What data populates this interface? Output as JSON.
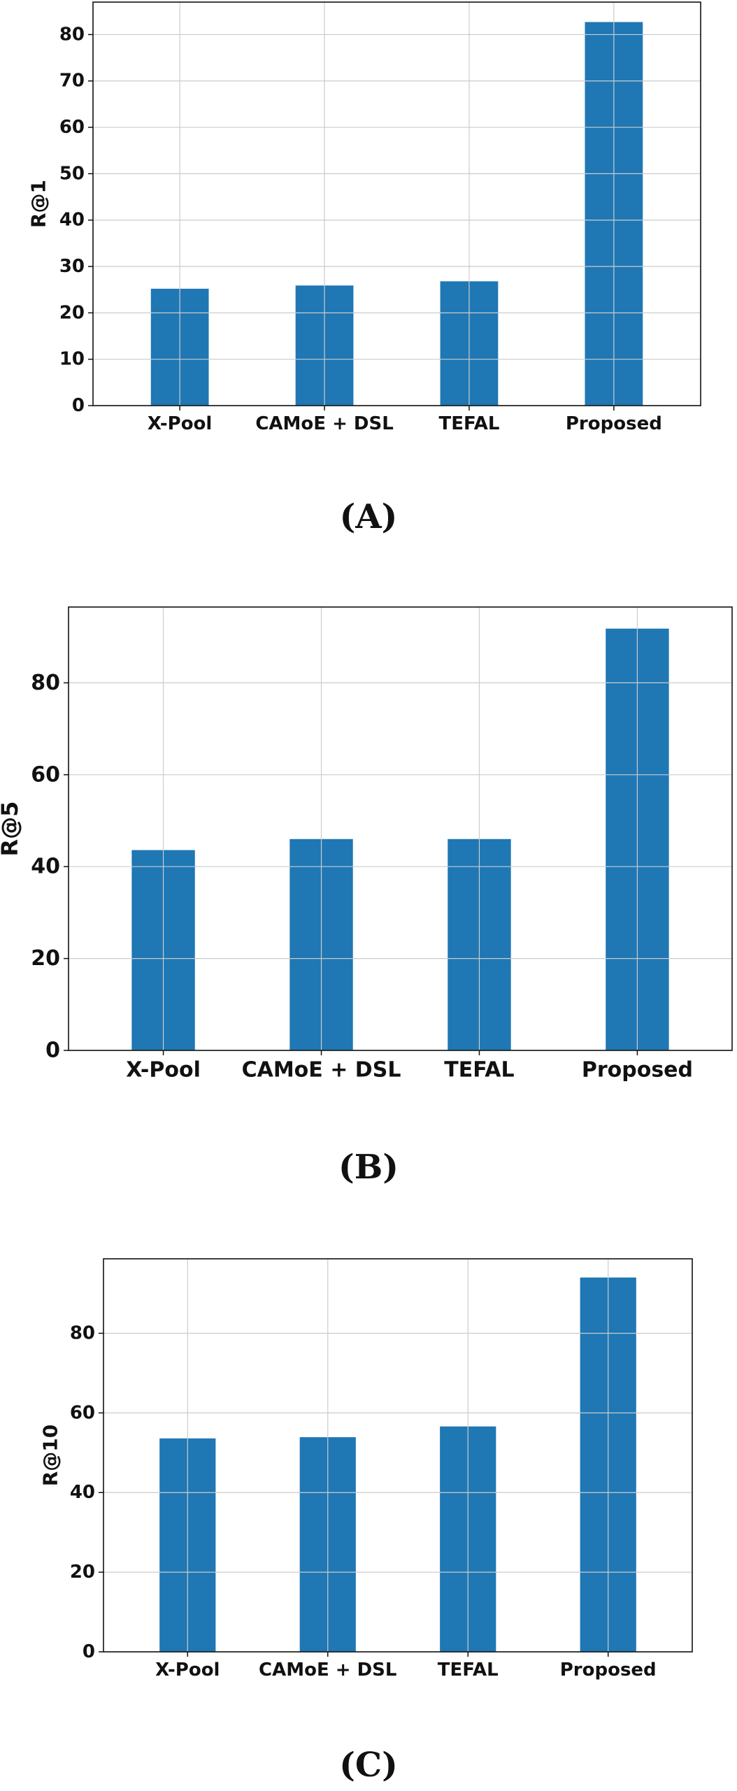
{
  "bar_color": "#1f77b4",
  "grid_color": "#cccccc",
  "chart_data": [
    {
      "type": "bar",
      "panel_label": "(A)",
      "ylabel": "R@1",
      "categories": [
        "X-Pool",
        "CAMoE + DSL",
        "TEFAL",
        "Proposed"
      ],
      "values": [
        25.2,
        25.9,
        26.8,
        82.7
      ],
      "ylim": [
        0,
        87
      ],
      "yticks": [
        0,
        10,
        20,
        30,
        40,
        50,
        60,
        70,
        80
      ],
      "grid": true
    },
    {
      "type": "bar",
      "panel_label": "(B)",
      "ylabel": "R@5",
      "categories": [
        "X-Pool",
        "CAMoE + DSL",
        "TEFAL",
        "Proposed"
      ],
      "values": [
        43.6,
        46.0,
        46.0,
        91.8
      ],
      "ylim": [
        0,
        96.5
      ],
      "yticks": [
        0,
        20,
        40,
        60,
        80
      ],
      "grid": true
    },
    {
      "type": "bar",
      "panel_label": "(C)",
      "ylabel": "R@10",
      "categories": [
        "X-Pool",
        "CAMoE + DSL",
        "TEFAL",
        "Proposed"
      ],
      "values": [
        53.6,
        53.9,
        56.6,
        94.0
      ],
      "ylim": [
        0,
        98.7
      ],
      "yticks": [
        0,
        20,
        40,
        60,
        80
      ],
      "grid": true
    }
  ]
}
